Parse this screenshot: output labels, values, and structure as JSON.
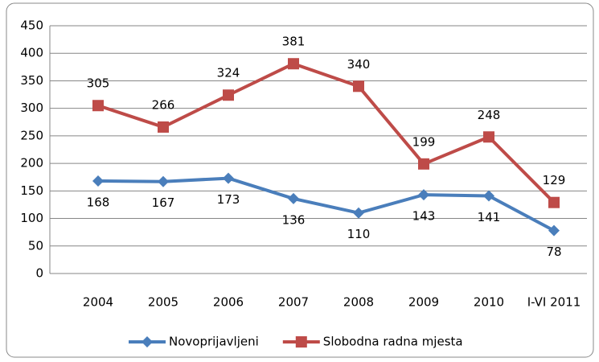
{
  "chart_data": {
    "type": "line",
    "categories": [
      "2004",
      "2005",
      "2006",
      "2007",
      "2008",
      "2009",
      "2010",
      "I-VI 2011"
    ],
    "series": [
      {
        "name": "Novoprijavljeni",
        "color": "#4a7ebb",
        "marker": "diamond",
        "label_position": "below",
        "values": [
          168,
          167,
          173,
          136,
          110,
          143,
          141,
          78
        ]
      },
      {
        "name": "Slobodna radna mjesta",
        "color": "#be4b48",
        "marker": "square",
        "label_position": "above",
        "values": [
          305,
          266,
          324,
          381,
          340,
          199,
          248,
          129
        ]
      }
    ],
    "ylim": [
      0,
      450
    ],
    "yticks": [
      0,
      50,
      100,
      150,
      200,
      250,
      300,
      350,
      400,
      450
    ],
    "grid": true,
    "legend": "bottom"
  }
}
